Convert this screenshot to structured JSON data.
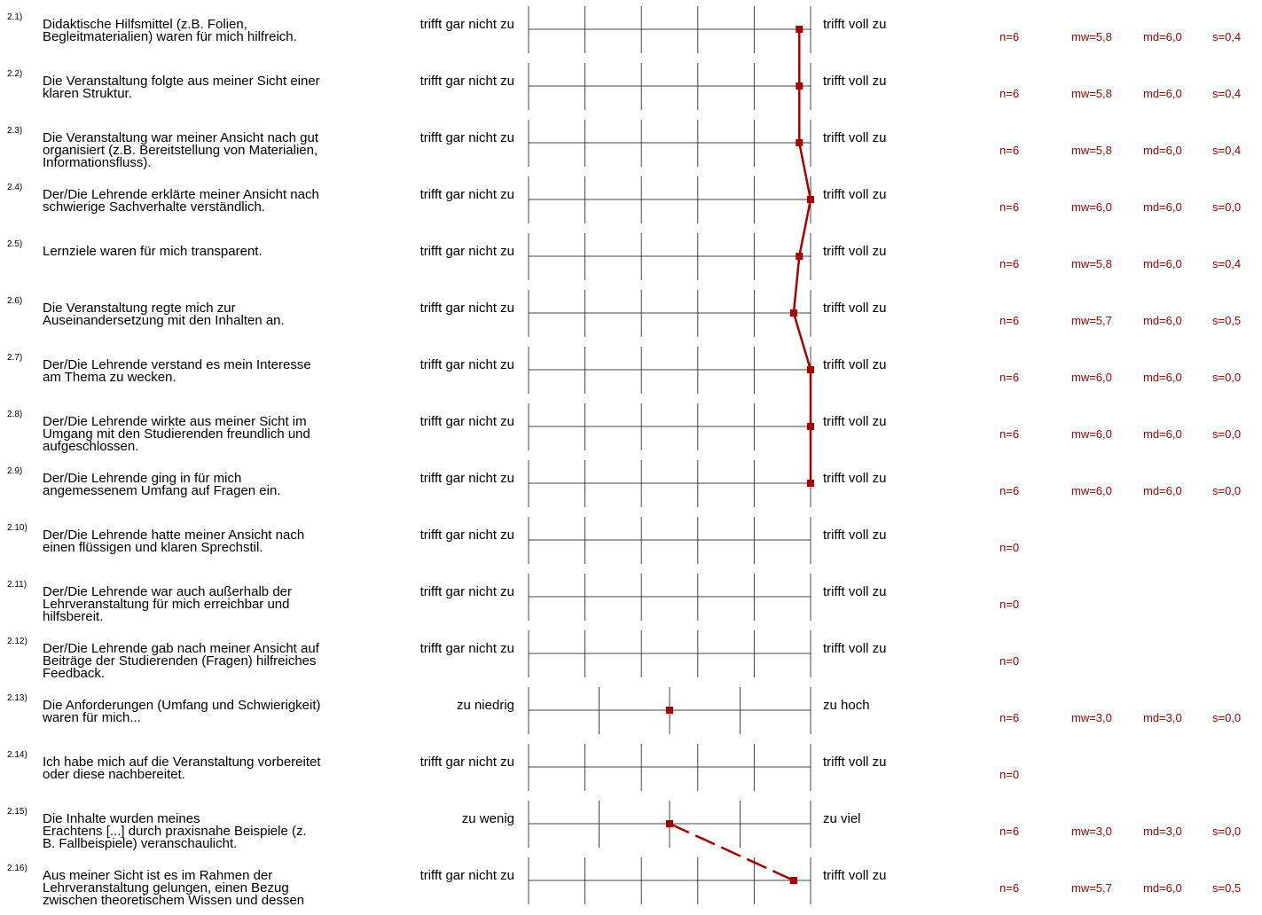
{
  "colors": {
    "profile": "#aa0000",
    "axis": "#444444",
    "stats": "#a00000"
  },
  "chart_data": {
    "type": "line",
    "title": "",
    "connected_items": [
      12,
      14,
      15
    ],
    "items": [
      {
        "num": "2.1)",
        "lines": [
          "Didaktische Hilfsmittel (z.B. Folien,",
          "Begleitmaterialien) waren für mich hilfreich."
        ],
        "left": "trifft gar nicht zu",
        "right": "trifft voll zu",
        "scale": 6,
        "value": 5.8,
        "stats": {
          "n": "n=6",
          "mw": "mw=5,8",
          "md": "md=6,0",
          "s": "s=0,4"
        }
      },
      {
        "num": "2.2)",
        "lines": [
          "Die Veranstaltung folgte aus meiner Sicht einer",
          "klaren Struktur."
        ],
        "left": "trifft gar nicht zu",
        "right": "trifft voll zu",
        "scale": 6,
        "value": 5.8,
        "stats": {
          "n": "n=6",
          "mw": "mw=5,8",
          "md": "md=6,0",
          "s": "s=0,4"
        }
      },
      {
        "num": "2.3)",
        "lines": [
          "Die Veranstaltung war meiner Ansicht nach gut",
          "organisiert (z.B. Bereitstellung von Materialien,",
          "Informationsfluss)."
        ],
        "left": "trifft gar nicht zu",
        "right": "trifft voll zu",
        "scale": 6,
        "value": 5.8,
        "stats": {
          "n": "n=6",
          "mw": "mw=5,8",
          "md": "md=6,0",
          "s": "s=0,4"
        }
      },
      {
        "num": "2.4)",
        "lines": [
          "Der/Die Lehrende erklärte meiner Ansicht nach",
          "schwierige Sachverhalte verständlich."
        ],
        "left": "trifft gar nicht zu",
        "right": "trifft voll zu",
        "scale": 6,
        "value": 6.0,
        "stats": {
          "n": "n=6",
          "mw": "mw=6,0",
          "md": "md=6,0",
          "s": "s=0,0"
        }
      },
      {
        "num": "2.5)",
        "lines": [
          "Lernziele waren für mich transparent."
        ],
        "left": "trifft gar nicht zu",
        "right": "trifft voll zu",
        "scale": 6,
        "value": 5.8,
        "stats": {
          "n": "n=6",
          "mw": "mw=5,8",
          "md": "md=6,0",
          "s": "s=0,4"
        }
      },
      {
        "num": "2.6)",
        "lines": [
          "Die Veranstaltung regte mich zur",
          "Auseinandersetzung mit den Inhalten an."
        ],
        "left": "trifft gar nicht zu",
        "right": "trifft voll zu",
        "scale": 6,
        "value": 5.7,
        "stats": {
          "n": "n=6",
          "mw": "mw=5,7",
          "md": "md=6,0",
          "s": "s=0,5"
        }
      },
      {
        "num": "2.7)",
        "lines": [
          "Der/Die Lehrende verstand es mein Interesse",
          "am Thema zu wecken."
        ],
        "left": "trifft gar nicht zu",
        "right": "trifft voll zu",
        "scale": 6,
        "value": 6.0,
        "stats": {
          "n": "n=6",
          "mw": "mw=6,0",
          "md": "md=6,0",
          "s": "s=0,0"
        }
      },
      {
        "num": "2.8)",
        "lines": [
          "Der/Die Lehrende wirkte aus meiner Sicht im",
          "Umgang mit den Studierenden freundlich und",
          "aufgeschlossen."
        ],
        "left": "trifft gar nicht zu",
        "right": "trifft voll zu",
        "scale": 6,
        "value": 6.0,
        "stats": {
          "n": "n=6",
          "mw": "mw=6,0",
          "md": "md=6,0",
          "s": "s=0,0"
        }
      },
      {
        "num": "2.9)",
        "lines": [
          "Der/Die Lehrende ging in für mich",
          "angemessenem Umfang auf Fragen ein."
        ],
        "left": "trifft gar nicht zu",
        "right": "trifft voll zu",
        "scale": 6,
        "value": 6.0,
        "stats": {
          "n": "n=6",
          "mw": "mw=6,0",
          "md": "md=6,0",
          "s": "s=0,0"
        }
      },
      {
        "num": "2.10)",
        "lines": [
          "Der/Die Lehrende hatte meiner Ansicht nach",
          "einen flüssigen und klaren Sprechstil."
        ],
        "left": "trifft gar nicht zu",
        "right": "trifft voll zu",
        "scale": 6,
        "value": null,
        "stats": {
          "n": "n=0"
        }
      },
      {
        "num": "2.11)",
        "lines": [
          "Der/Die Lehrende war auch außerhalb der",
          "Lehrveranstaltung für mich erreichbar und",
          "hilfsbereit."
        ],
        "left": "trifft gar nicht zu",
        "right": "trifft voll zu",
        "scale": 6,
        "value": null,
        "stats": {
          "n": "n=0"
        }
      },
      {
        "num": "2.12)",
        "lines": [
          "Der/Die Lehrende gab nach meiner Ansicht auf",
          "Beiträge der Studierenden (Fragen) hilfreiches",
          "Feedback."
        ],
        "left": "trifft gar nicht zu",
        "right": "trifft voll zu",
        "scale": 6,
        "value": null,
        "stats": {
          "n": "n=0"
        }
      },
      {
        "num": "2.13)",
        "lines": [
          "Die Anforderungen (Umfang und Schwierigkeit)",
          "waren für mich..."
        ],
        "left": "zu niedrig",
        "right": "zu hoch",
        "scale": 5,
        "value": 3.0,
        "stats": {
          "n": "n=6",
          "mw": "mw=3,0",
          "md": "md=3,0",
          "s": "s=0,0"
        }
      },
      {
        "num": "2.14)",
        "lines": [
          "Ich habe mich auf die Veranstaltung vorbereitet",
          "oder diese nachbereitet."
        ],
        "left": "trifft gar nicht zu",
        "right": "trifft voll zu",
        "scale": 6,
        "value": null,
        "stats": {
          "n": "n=0"
        }
      },
      {
        "num": "2.15)",
        "lines": [
          "Die Inhalte wurden meines",
          "Erachtens  [...]  durch praxisnahe Beispiele (z.",
          "B. Fallbeispiele) veranschaulicht."
        ],
        "left": "zu wenig",
        "right": "zu viel",
        "scale": 5,
        "value": 3.0,
        "stats": {
          "n": "n=6",
          "mw": "mw=3,0",
          "md": "md=3,0",
          "s": "s=0,0"
        }
      },
      {
        "num": "2.16)",
        "lines": [
          "Aus meiner Sicht ist es im Rahmen der",
          "Lehrveranstaltung gelungen, einen Bezug",
          "zwischen theoretischem Wissen und dessen"
        ],
        "left": "trifft gar nicht zu",
        "right": "trifft voll zu",
        "scale": 6,
        "value": 5.7,
        "stats": {
          "n": "n=6",
          "mw": "mw=5,7",
          "md": "md=6,0",
          "s": "s=0,5"
        }
      }
    ]
  }
}
